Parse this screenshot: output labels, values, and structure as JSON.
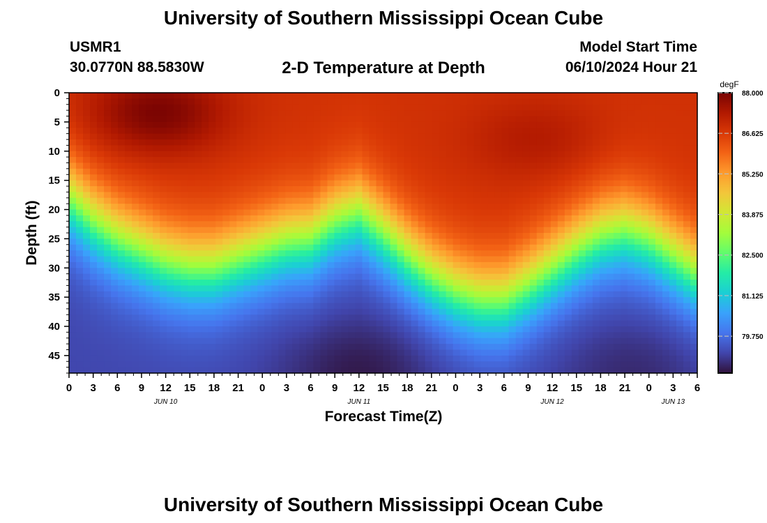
{
  "header": {
    "title": "University of Southern Mississippi Ocean Cube",
    "station_id": "USMR1",
    "station_coords": "30.0770N  88.5830W",
    "plot_title": "2-D Temperature at Depth",
    "start_label": "Model Start Time",
    "start_value": "06/10/2024 Hour 21"
  },
  "footer": {
    "title": "University of Southern Mississippi Ocean Cube"
  },
  "chart_data": {
    "type": "heatmap",
    "title": "2-D Temperature at Depth",
    "xlabel": "Forecast Time(Z)",
    "ylabel": "Depth (ft)",
    "x_range_hours": [
      0,
      78
    ],
    "y_range_ft": [
      0,
      48
    ],
    "x_tick_labels": [
      "0",
      "3",
      "6",
      "9",
      "12",
      "15",
      "18",
      "21",
      "0",
      "3",
      "6",
      "9",
      "12",
      "15",
      "18",
      "21",
      "0",
      "3",
      "6",
      "9",
      "12",
      "15",
      "18",
      "21",
      "0",
      "3",
      "6"
    ],
    "y_ticks": [
      0,
      5,
      10,
      15,
      20,
      25,
      30,
      35,
      40,
      45
    ],
    "date_labels": [
      {
        "text": "JUN 10",
        "hour": 12
      },
      {
        "text": "JUN 11",
        "hour": 36
      },
      {
        "text": "JUN 12",
        "hour": 60
      },
      {
        "text": "JUN 13",
        "hour": 75
      }
    ],
    "colorbar": {
      "unit": "degF",
      "min": 78.5,
      "max": 88.0,
      "tick_labels": [
        "88.000",
        "86.625",
        "85.250",
        "83.875",
        "82.500",
        "81.125",
        "79.750"
      ],
      "tick_values": [
        88.0,
        86.625,
        85.25,
        83.875,
        82.5,
        81.125,
        79.75
      ],
      "palette": [
        "#30123b",
        "#4145ab",
        "#4675ed",
        "#39a2fc",
        "#1bcfd4",
        "#24eca6",
        "#61fc6c",
        "#a4fc3b",
        "#d1e834",
        "#f3c63a",
        "#fe9b2d",
        "#f36315",
        "#d93806",
        "#b11901",
        "#7a0402"
      ]
    },
    "temperature_profile": {
      "description": "thermocline depth (ft) vs forecast hour",
      "hours": [
        0,
        3,
        6,
        9,
        12,
        15,
        18,
        21,
        24,
        27,
        30,
        33,
        36,
        39,
        42,
        45,
        48,
        51,
        54,
        57,
        60,
        63,
        66,
        69,
        72,
        75,
        78
      ],
      "thermocline_ft": [
        18,
        22,
        25,
        27,
        29,
        30,
        30,
        28.5,
        27,
        25.5,
        25,
        22,
        20.5,
        24,
        28,
        31.5,
        34,
        35.5,
        35.5,
        33,
        30,
        27,
        24.5,
        23.5,
        25,
        28,
        31
      ],
      "surface_warm_core": [
        {
          "hour": 11,
          "depth_ft": 3.5,
          "temp_degF": 88.0
        },
        {
          "hour": 58,
          "depth_ft": 8,
          "temp_degF": 87.3
        }
      ],
      "deep_cold_core": [
        {
          "hour": 36,
          "depth_ft": 48,
          "temp_degF": 78.6
        },
        {
          "hour": 70,
          "depth_ft": 48,
          "temp_degF": 78.8
        }
      ],
      "surface_temp_degF": 86.8,
      "bottom_temp_degF": 79.2
    }
  }
}
